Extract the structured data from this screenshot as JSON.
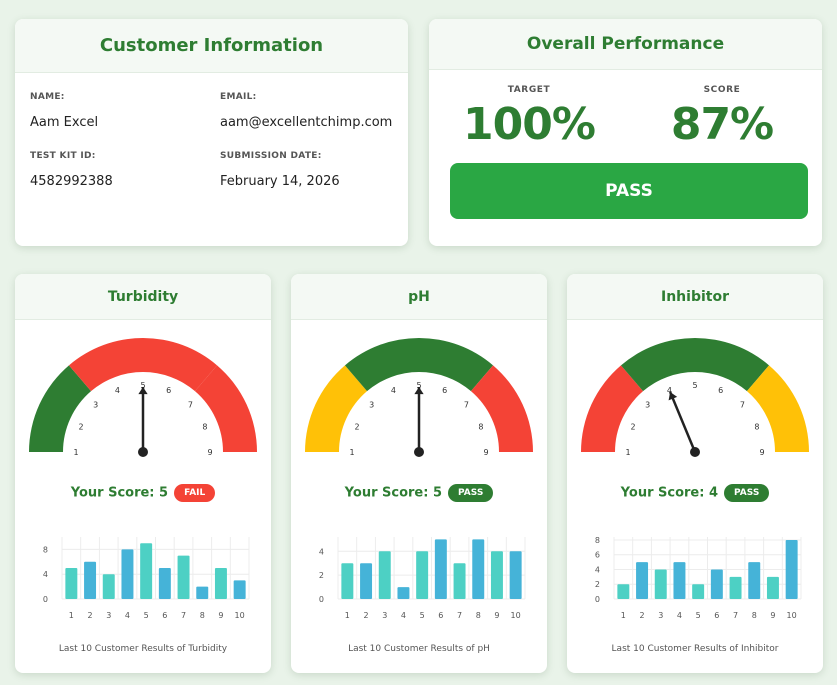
{
  "customer": {
    "title": "Customer Information",
    "name_label": "NAME:",
    "name": "Aam Excel",
    "email_label": "EMAIL:",
    "email": "aam@excellentchimp.com",
    "kit_label": "TEST KIT ID:",
    "kit_id": "4582992388",
    "date_label": "SUBMISSION DATE:",
    "date": "February 14, 2026"
  },
  "performance": {
    "title": "Overall Performance",
    "target_label": "TARGET",
    "target": "100%",
    "score_label": "SCORE",
    "score": "87%",
    "status": "PASS"
  },
  "colors": {
    "green": "#2e7d32",
    "red": "#f44336",
    "yellow": "#ffc107",
    "pass_bar": "#2aa744",
    "bar_a": "#4dd0c4",
    "bar_b": "#45b3d8"
  },
  "metrics": [
    {
      "title": "Turbidity",
      "score_text": "Your Score: 5",
      "score": 5,
      "badge": "FAIL",
      "badge_color": "#f44336",
      "zones": [
        "#2e7d32",
        "#f44336",
        "#f44336"
      ],
      "dial_labels": [
        "1",
        "2",
        "3",
        "4",
        "5",
        "6",
        "7",
        "8",
        "9"
      ],
      "caption": "Last 10 Customer Results of Turbidity",
      "chart_data": {
        "type": "bar",
        "categories": [
          "1",
          "2",
          "3",
          "4",
          "5",
          "6",
          "7",
          "8",
          "9",
          "10"
        ],
        "values": [
          5,
          6,
          4,
          8,
          9,
          5,
          7,
          2,
          5,
          3
        ],
        "yticks": [
          "0",
          "4",
          "8"
        ],
        "ylim": [
          0,
          10
        ]
      }
    },
    {
      "title": "pH",
      "score_text": "Your Score: 5",
      "score": 5,
      "badge": "PASS",
      "badge_color": "#2e7d32",
      "zones": [
        "#ffc107",
        "#2e7d32",
        "#f44336"
      ],
      "dial_labels": [
        "1",
        "2",
        "3",
        "4",
        "5",
        "6",
        "7",
        "8",
        "9"
      ],
      "caption": "Last 10 Customer Results of pH",
      "chart_data": {
        "type": "bar",
        "categories": [
          "1",
          "2",
          "3",
          "4",
          "5",
          "6",
          "7",
          "8",
          "9",
          "10"
        ],
        "values": [
          3,
          3,
          4,
          1,
          4,
          5,
          3,
          5,
          4,
          4
        ],
        "yticks": [
          "0",
          "2",
          "4"
        ],
        "ylim": [
          0,
          5.2
        ]
      }
    },
    {
      "title": "Inhibitor",
      "score_text": "Your Score: 4",
      "score": 4,
      "badge": "PASS",
      "badge_color": "#2e7d32",
      "zones": [
        "#f44336",
        "#2e7d32",
        "#ffc107"
      ],
      "dial_labels": [
        "1",
        "2",
        "3",
        "4",
        "5",
        "6",
        "7",
        "8",
        "9"
      ],
      "caption": "Last 10 Customer Results of Inhibitor",
      "chart_data": {
        "type": "bar",
        "categories": [
          "1",
          "2",
          "3",
          "4",
          "5",
          "6",
          "7",
          "8",
          "9",
          "10"
        ],
        "values": [
          2,
          5,
          4,
          5,
          2,
          4,
          3,
          5,
          3,
          8
        ],
        "yticks": [
          "0",
          "2",
          "4",
          "6",
          "8"
        ],
        "ylim": [
          0,
          8.4
        ]
      }
    }
  ]
}
